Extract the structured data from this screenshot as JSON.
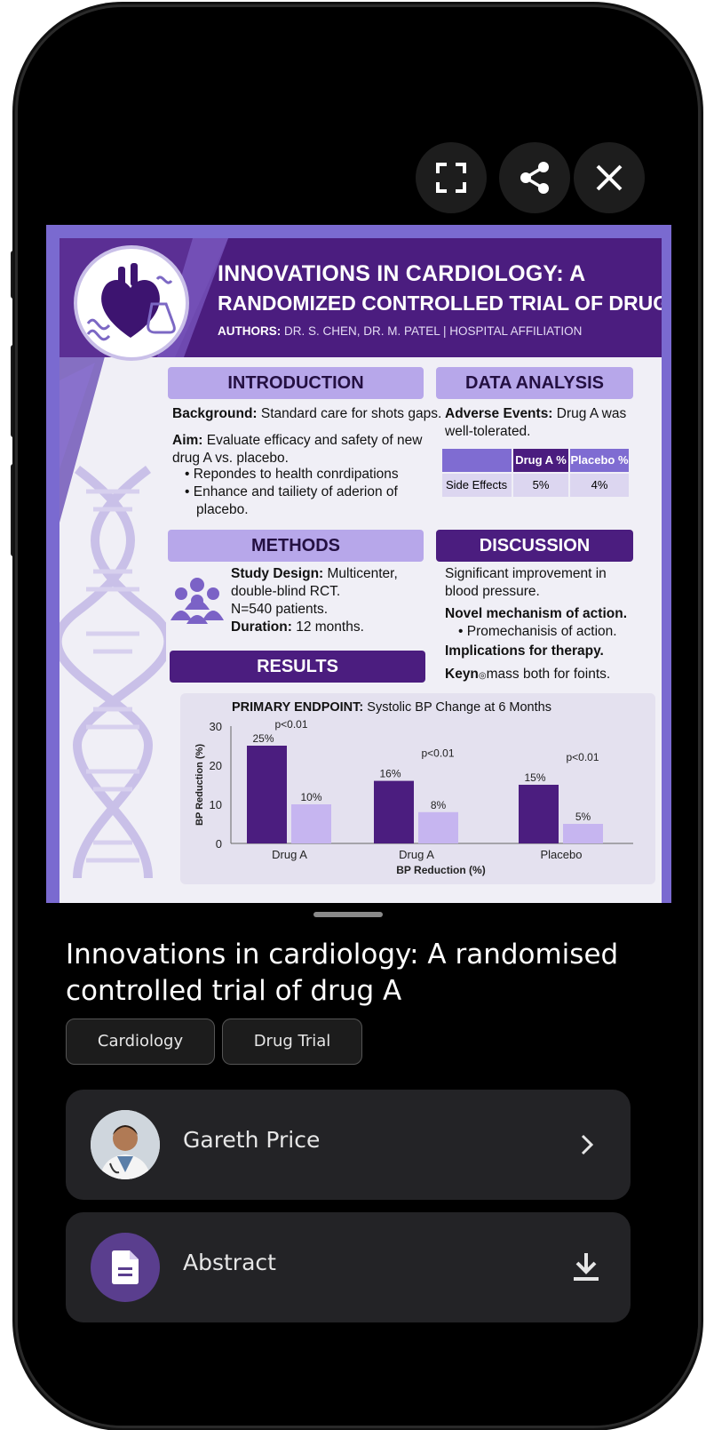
{
  "toolbar": {
    "fullscreen_icon": "fullscreen-icon",
    "share_icon": "share-icon",
    "close_icon": "close-icon"
  },
  "poster": {
    "title_line1": "INNOVATIONS IN CARDIOLOGY: A",
    "title_line2": "RANDOMIZED CONTROLLED TRIAL OF DRUG A",
    "authors_label": "AUTHORS:",
    "authors": "DR. S. CHEN, DR. M. PATEL | HOSPITAL AFFILIATION",
    "introduction": {
      "heading": "INTRODUCTION",
      "background_label": "Background:",
      "background": "Standard care for shots gaps.",
      "aim_label": "Aim:",
      "aim_line1": "Evaluate efficacy and safety of new",
      "aim_line2": "drug A vs. placebo.",
      "bullet1": "Repondes to health conrdipations",
      "bullet2_line1": "Enhance and tailiety of aderion of",
      "bullet2_line2": "placebo."
    },
    "data_analysis": {
      "heading": "DATA ANALYSIS",
      "adverse_label": "Adverse Events:",
      "adverse_line1": "Drug A was",
      "adverse_line2": "well-tolerated.",
      "table_headers": [
        "",
        "Drug A %",
        "Placebo %"
      ],
      "table_row": [
        "Side Effects",
        "5%",
        "4%"
      ]
    },
    "methods": {
      "heading": "METHODS",
      "design_label": "Study Design:",
      "design_line1": "Multicenter,",
      "design_line2": "double-blind RCT.",
      "n": "N=540 patients.",
      "duration_label": "Duration:",
      "duration": "12 months."
    },
    "discussion": {
      "heading": "DISCUSSION",
      "line1": "Significant improvement in",
      "line2": "blood pressure.",
      "novel": "Novel mechanism of action.",
      "bullet": "Promechanisis of action.",
      "implications": "Implications for therapy.",
      "key_label": "Keyn",
      "key": "mass both for foints."
    },
    "results": {
      "heading": "RESULTS"
    }
  },
  "chart_data": {
    "type": "bar",
    "title_label": "PRIMARY ENDPOINT:",
    "title": "Systolic BP Change at 6 Months",
    "categories": [
      "Drug A",
      "Drug A",
      "Placebo"
    ],
    "series": [
      {
        "values": [
          25,
          16,
          15
        ],
        "labels": [
          "25%",
          "16%",
          "15%"
        ],
        "color": "#4b1d7f"
      },
      {
        "values": [
          10,
          8,
          5
        ],
        "labels": [
          "10%",
          "8%",
          "5%"
        ],
        "color": "#c6b5f0"
      }
    ],
    "p_values": [
      "p<0.01",
      "p<0.01",
      "p<0.01"
    ],
    "xlabel": "BP Reduction (%)",
    "ylabel": "BP Reduction (%)",
    "ylim": [
      0,
      30
    ],
    "yticks": [
      "0",
      "10",
      "20",
      "30"
    ],
    "grid": false
  },
  "sheet": {
    "title": "Innovations in cardiology: A randomised controlled trial of drug A",
    "tags": [
      "Cardiology",
      "Drug Trial"
    ],
    "author": {
      "name": "Gareth Price",
      "avatar_icon": "avatar",
      "chevron": "chevron-right-icon"
    },
    "abstract": {
      "label": "Abstract",
      "icon": "document-icon",
      "download": "download-icon"
    }
  },
  "colors": {
    "poster_header": "#4b1d7f",
    "section_light": "#b7a7ea",
    "card_bg": "#232326",
    "bar_dark": "#4b1d7f",
    "bar_light": "#c6b5f0"
  }
}
